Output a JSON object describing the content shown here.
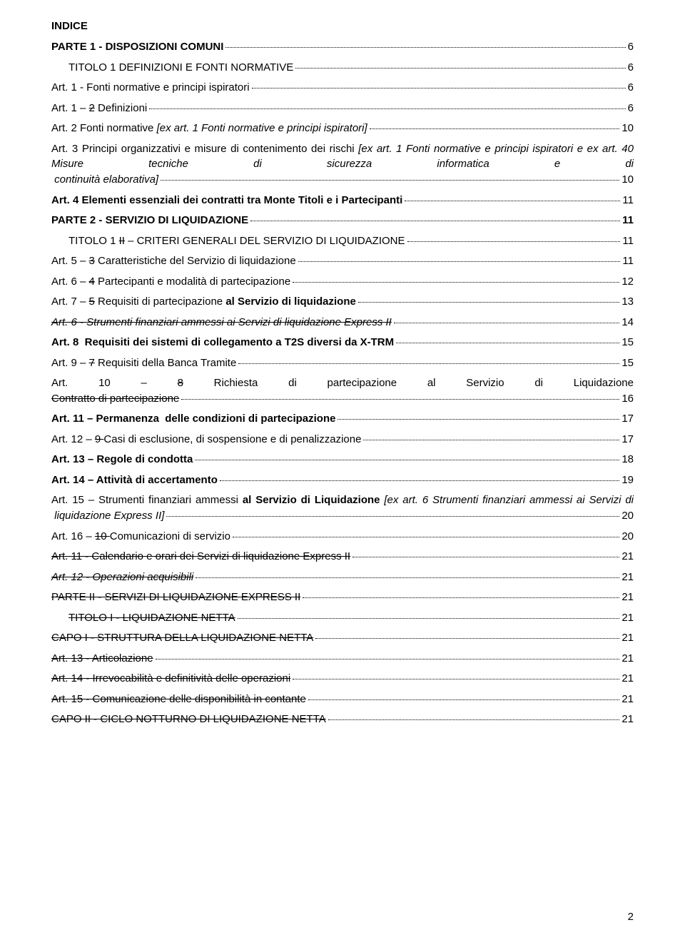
{
  "header": "INDICE",
  "footer_page": "2",
  "entries": [
    {
      "html": "<b>PARTE 1 - DISPOSIZIONI COMUNI</b>",
      "page": "6",
      "gap_after": true
    },
    {
      "html": "TITOLO 1 DEFINIZIONI E FONTI NORMATIVE",
      "page": "6",
      "indent": 24,
      "gap_after": true
    },
    {
      "html": "Art. 1 - Fonti normative e principi ispiratori",
      "page": "6",
      "gap_after": true
    },
    {
      "html": "Art. 1 – <s>2</s> Definizioni",
      "page": "6",
      "gap_after": true
    },
    {
      "html": "Art. 2 Fonti normative <i>[ex art. 1 Fonti normative e principi ispiratori]</i>",
      "page": "10",
      "gap_after": true
    },
    {
      "html": "Art. 3  Principi organizzativi e misure di contenimento dei rischi <i>[ex art. 1 Fonti normative e principi ispiratori e ex art. 40 Misure tecniche di sicurezza informatica e di continuità elaborativa]</i>",
      "page": "10",
      "multiline": true,
      "gap_after": true
    },
    {
      "html": "<b>Art. 4 Elementi essenziali dei contratti tra Monte Titoli e i Partecipanti</b>",
      "page": "11",
      "gap_after": true
    },
    {
      "html": "<b>PARTE 2 - SERVIZIO DI LIQUIDAZIONE</b>",
      "page": "<b>11</b>",
      "gap_after": true
    },
    {
      "html": "TITOLO 1 <s>II</s> – CRITERI GENERALI DEL SERVIZIO DI LIQUIDAZIONE",
      "page": "11",
      "indent": 24,
      "gap_after": true
    },
    {
      "html": "Art. 5 – <s>3</s> Caratteristiche del Servizio di liquidazione",
      "page": "11",
      "gap_after": true
    },
    {
      "html": "Art. 6 – <s>4</s> Partecipanti e modalità di partecipazione",
      "page": "12",
      "gap_after": true
    },
    {
      "html": "Art. 7 – <s>5</s> Requisiti di partecipazione <b>al Servizio di liquidazione</b>",
      "page": "13",
      "gap_after": true
    },
    {
      "html": "<i><s>Art. 6 - Strumenti finanziari ammessi ai Servizi di liquidazione Express II</s></i>",
      "page": "14",
      "gap_after": true
    },
    {
      "html": "<b>Art. 8  Requisiti dei sistemi di collegamento a T2S diversi da X-TRM</b>",
      "page": "15",
      "gap_after": true
    },
    {
      "html": "Art. 9 – <s>7</s> Requisiti della Banca Tramite",
      "page": "15",
      "gap_after": true
    },
    {
      "html": "Art. 10 – <s>8</s> Richiesta di partecipazione al Servizio di Liquidazione <s>Contratto di partecipazione</s>",
      "page": "16",
      "multiline": true,
      "widejust": true,
      "gap_after": true
    },
    {
      "html": "<b>Art. 11 – Permanenza  delle condizioni di partecipazione</b>",
      "page": "17",
      "gap_after": true
    },
    {
      "html": "Art. 12 – <s>9 </s>Casi di esclusione, di sospensione e di penalizzazione",
      "page": "17",
      "gap_after": true
    },
    {
      "html": "<b>Art. 13 – Regole di condotta</b>",
      "page": "18",
      "gap_after": true
    },
    {
      "html": "<b>Art. 14 – Attività di accertamento</b>",
      "page": "19",
      "gap_after": true
    },
    {
      "html": "Art. 15 – Strumenti finanziari ammessi <b>al Servizio di Liquidazione</b> <i>[ex art. 6  Strumenti finanziari ammessi ai Servizi di liquidazione Express II]</i>",
      "page": "20",
      "multiline": true,
      "widejust": true,
      "gap_after": true
    },
    {
      "html": "Art. 16 – <s>10 </s>Comunicazioni di servizio",
      "page": "20",
      "gap_after": true
    },
    {
      "html": "<s>Art. 11 - Calendario e orari dei Servizi di liquidazione Express II</s>",
      "page": "21",
      "gap_after": true
    },
    {
      "html": "<i><s>Art. 12 - Operazioni acquisibili</s></i>",
      "page": "21",
      "gap_after": true
    },
    {
      "html": "<s>PARTE II - SERVIZI DI LIQUIDAZIONE EXPRESS II</s>",
      "page": "21",
      "gap_after": true
    },
    {
      "html": "<s>TITOLO I - LIQUIDAZIONE NETTA</s>",
      "page": "21",
      "indent": 24,
      "gap_after": true
    },
    {
      "html": "<s>CAPO I - STRUTTURA DELLA LIQUIDAZIONE NETTA</s>",
      "page": "21",
      "gap_after": true
    },
    {
      "html": "<s>Art. 13 - Articolazione</s>",
      "page": "21",
      "gap_after": true
    },
    {
      "html": "<s>Art. 14 - Irrevocabilità e definitività delle operazioni</s>",
      "page": "21",
      "gap_after": true
    },
    {
      "html": "<s>Art. 15 - Comunicazione delle disponibilità in contante</s>",
      "page": "21",
      "gap_after": true
    },
    {
      "html": "<s>CAPO II - CICLO NOTTURNO DI LIQUIDAZIONE NETTA</s>",
      "page": "21",
      "gap_after": false
    }
  ]
}
